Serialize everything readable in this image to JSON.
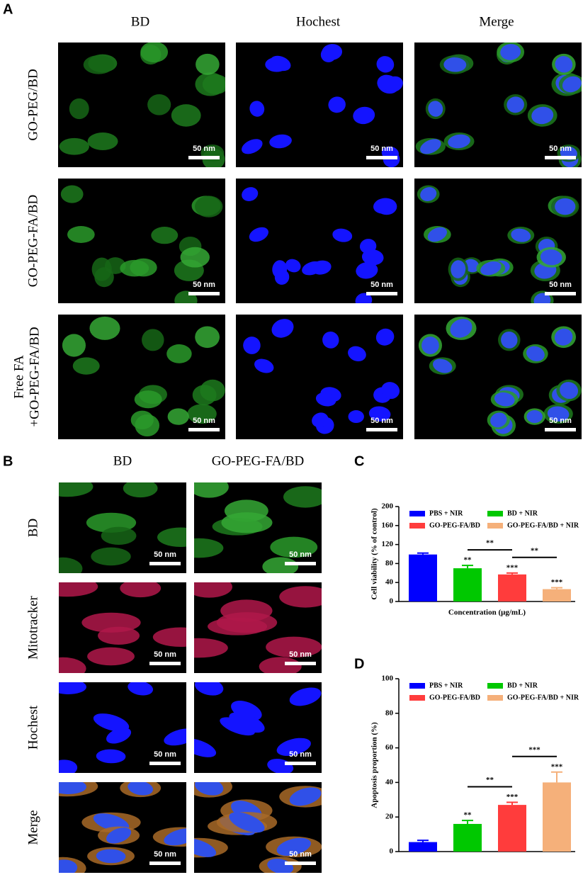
{
  "panel_a": {
    "label": "A",
    "columns": [
      "BD",
      "Hochest",
      "Merge"
    ],
    "rows": [
      "GO-PEG/BD",
      "GO-PEG-FA/BD",
      [
        "Free FA",
        "+GO-PEG-FA/BD"
      ]
    ],
    "scale_bar": "50 nm"
  },
  "panel_b": {
    "label": "B",
    "columns": [
      "BD",
      "GO-PEG-FA/BD"
    ],
    "rows": [
      "BD",
      "Mitotracker",
      "Hochest",
      "Merge"
    ],
    "scale_bar": "50 nm"
  },
  "chart_data": [
    {
      "type": "bar",
      "label": "C",
      "ylabel": "Cell viability (% of control)",
      "xlabel": "Concentration (μg/mL)",
      "ylim": [
        0,
        200
      ],
      "yticks": [
        0,
        40,
        80,
        120,
        160,
        200
      ],
      "legend": "upper-left",
      "series": [
        {
          "name": "PBS + NIR",
          "color": "#0000ff",
          "values": [
            99
          ],
          "errors": [
            3
          ]
        },
        {
          "name": "BD + NIR",
          "color": "#00c800",
          "values": [
            70
          ],
          "errors": [
            6
          ],
          "significance": "**"
        },
        {
          "name": "GO-PEG-FA/BD",
          "color": "#ff3c3c",
          "values": [
            57
          ],
          "errors": [
            3
          ],
          "significance": "***"
        },
        {
          "name": "GO-PEG-FA/BD + NIR",
          "color": "#f5b07a",
          "values": [
            26
          ],
          "errors": [
            3
          ],
          "significance": "***"
        }
      ],
      "comparisons": [
        {
          "text": "**",
          "between": [
            "BD + NIR",
            "GO-PEG-FA/BD"
          ]
        },
        {
          "text": "**",
          "between": [
            "GO-PEG-FA/BD",
            "GO-PEG-FA/BD + NIR"
          ]
        }
      ]
    },
    {
      "type": "bar",
      "label": "D",
      "ylabel": "Apoptosis proportion (%)",
      "ylim": [
        0,
        100
      ],
      "yticks": [
        0,
        20,
        40,
        60,
        80,
        100
      ],
      "legend": "upper-left",
      "series": [
        {
          "name": "PBS + NIR",
          "color": "#0000ff",
          "values": [
            5.5
          ],
          "errors": [
            1
          ]
        },
        {
          "name": "BD + NIR",
          "color": "#00c800",
          "values": [
            16
          ],
          "errors": [
            2
          ],
          "significance": "**"
        },
        {
          "name": "GO-PEG-FA/BD",
          "color": "#ff3c3c",
          "values": [
            27
          ],
          "errors": [
            1.5
          ],
          "significance": "***"
        },
        {
          "name": "GO-PEG-FA/BD + NIR",
          "color": "#f5b07a",
          "values": [
            40
          ],
          "errors": [
            6
          ],
          "significance": "***"
        }
      ],
      "comparisons": [
        {
          "text": "**",
          "between": [
            "BD + NIR",
            "GO-PEG-FA/BD"
          ]
        },
        {
          "text": "***",
          "between": [
            "GO-PEG-FA/BD",
            "GO-PEG-FA/BD + NIR"
          ]
        }
      ]
    }
  ]
}
